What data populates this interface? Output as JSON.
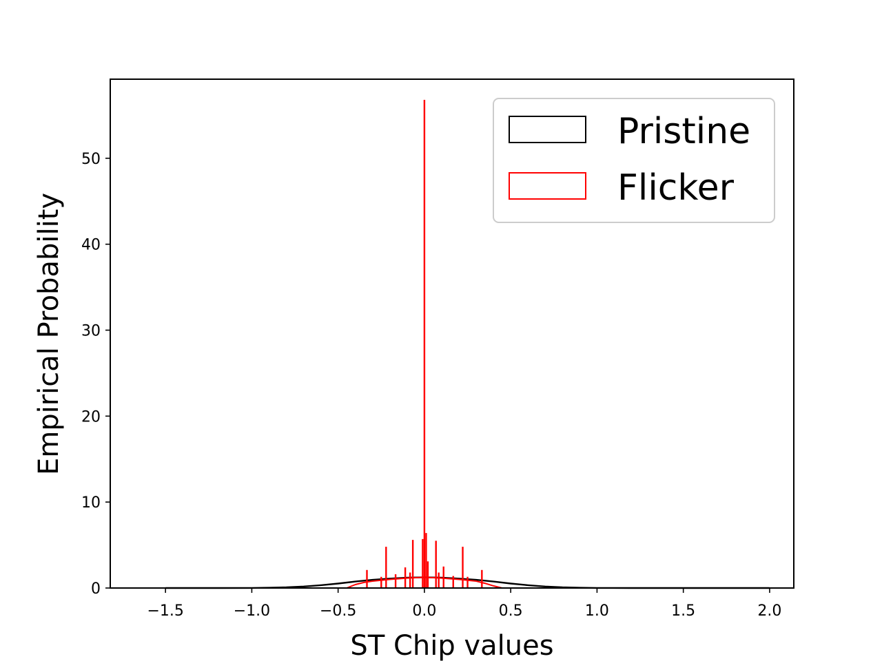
{
  "chart_data": {
    "type": "histogram",
    "title": "",
    "xlabel": "ST Chip values",
    "ylabel": "Empirical Probability",
    "xlim": [
      -1.82,
      2.14
    ],
    "ylim": [
      0,
      59.2
    ],
    "xticks": [
      -1.5,
      -1.0,
      -0.5,
      0.0,
      0.5,
      1.0,
      1.5,
      2.0
    ],
    "xtick_labels": [
      "−1.5",
      "−1.0",
      "−0.5",
      "0.0",
      "0.5",
      "1.0",
      "1.5",
      "2.0"
    ],
    "yticks": [
      0,
      10,
      20,
      30,
      40,
      50
    ],
    "ytick_labels": [
      "0",
      "10",
      "20",
      "30",
      "40",
      "50"
    ],
    "grid": false,
    "legend_position": "top-right",
    "series": [
      {
        "name": "Pristine",
        "color": "#000000",
        "histtype": "step",
        "points": [
          [
            -1.5,
            0.0
          ],
          [
            -1.2,
            0.0
          ],
          [
            -1.0,
            0.01
          ],
          [
            -0.9,
            0.03
          ],
          [
            -0.8,
            0.08
          ],
          [
            -0.7,
            0.18
          ],
          [
            -0.6,
            0.33
          ],
          [
            -0.5,
            0.52
          ],
          [
            -0.4,
            0.75
          ],
          [
            -0.3,
            0.95
          ],
          [
            -0.2,
            1.1
          ],
          [
            -0.1,
            1.2
          ],
          [
            0.0,
            1.25
          ],
          [
            0.1,
            1.2
          ],
          [
            0.2,
            1.1
          ],
          [
            0.3,
            0.95
          ],
          [
            0.4,
            0.75
          ],
          [
            0.5,
            0.52
          ],
          [
            0.6,
            0.33
          ],
          [
            0.7,
            0.18
          ],
          [
            0.8,
            0.08
          ],
          [
            0.9,
            0.03
          ],
          [
            1.0,
            0.01
          ],
          [
            1.2,
            0.0
          ],
          [
            2.0,
            0.0
          ]
        ]
      },
      {
        "name": "Flicker",
        "color": "#ff0000",
        "histtype": "step",
        "base_points": [
          [
            -0.45,
            0.0
          ],
          [
            -0.4,
            0.4
          ],
          [
            -0.35,
            0.65
          ],
          [
            -0.3,
            0.8
          ],
          [
            -0.2,
            1.0
          ],
          [
            -0.1,
            1.15
          ],
          [
            0.0,
            1.25
          ],
          [
            0.1,
            1.15
          ],
          [
            0.2,
            1.0
          ],
          [
            0.3,
            0.8
          ],
          [
            0.35,
            0.55
          ],
          [
            0.4,
            0.25
          ],
          [
            0.45,
            0.0
          ]
        ],
        "spikes": [
          [
            -0.333,
            2.1
          ],
          [
            -0.25,
            1.3
          ],
          [
            -0.222,
            4.8
          ],
          [
            -0.167,
            1.6
          ],
          [
            -0.111,
            2.4
          ],
          [
            -0.083,
            1.8
          ],
          [
            -0.067,
            5.6
          ],
          [
            -0.01,
            5.7
          ],
          [
            0.0,
            56.8
          ],
          [
            0.01,
            6.4
          ],
          [
            0.02,
            3.1
          ],
          [
            0.067,
            5.5
          ],
          [
            0.083,
            1.8
          ],
          [
            0.111,
            2.5
          ],
          [
            0.167,
            1.4
          ],
          [
            0.222,
            4.8
          ],
          [
            0.25,
            1.3
          ],
          [
            0.333,
            2.1
          ]
        ]
      }
    ]
  }
}
